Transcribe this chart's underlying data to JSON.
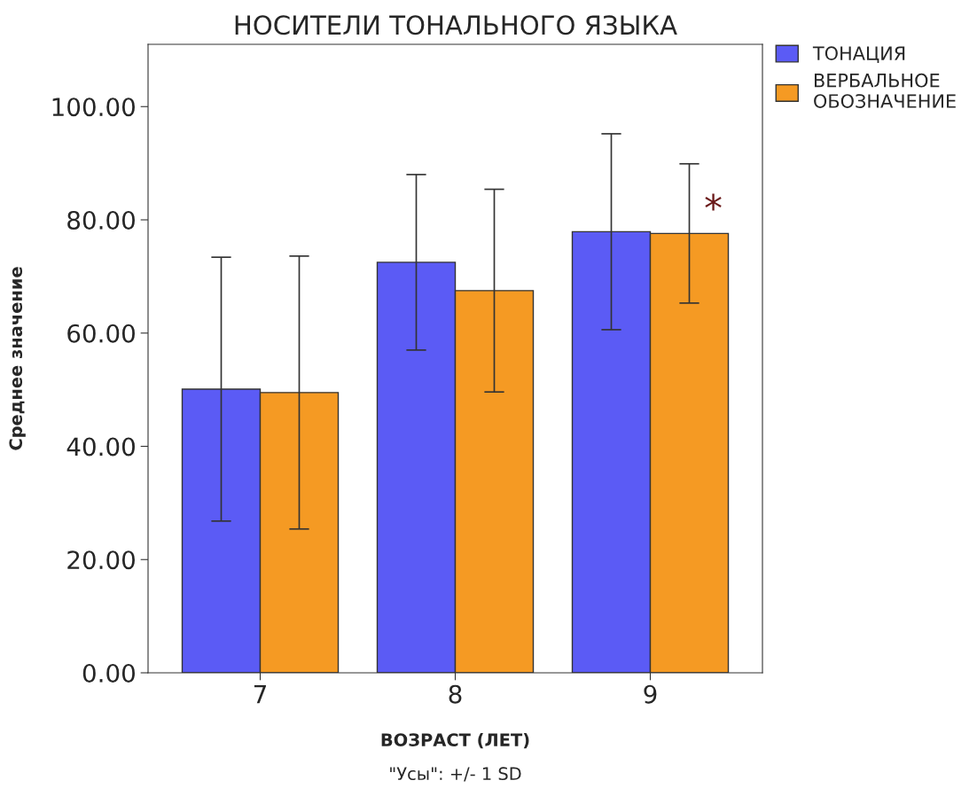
{
  "chart_data": {
    "type": "bar",
    "title": "НОСИТЕЛИ ТОНАЛЬНОГО ЯЗЫКА",
    "xlabel": "ВОЗРАСТ (ЛЕТ)",
    "ylabel": "Среднее значение",
    "categories": [
      "7",
      "8",
      "9"
    ],
    "series": [
      {
        "name": "ТОНАЦИЯ",
        "color": "#5b5bf5",
        "values": [
          50.1,
          72.5,
          77.9
        ],
        "errors": [
          23.3,
          15.5,
          17.3
        ]
      },
      {
        "name": "ВЕРБАЛЬНОЕ\nОБОЗНАЧЕНИЕ",
        "color": "#f59a23",
        "values": [
          49.5,
          67.5,
          77.6
        ],
        "errors": [
          24.1,
          17.9,
          12.3
        ]
      }
    ],
    "ylim": [
      0,
      111
    ],
    "yticks": [
      {
        "value": 0,
        "label": "0.00"
      },
      {
        "value": 20,
        "label": "20.00"
      },
      {
        "value": 40,
        "label": "40.00"
      },
      {
        "value": 60,
        "label": "60.00"
      },
      {
        "value": 80,
        "label": "80.00"
      },
      {
        "value": 100,
        "label": "100.00"
      }
    ],
    "grid": false,
    "legend": "top right",
    "annotations": [
      "*",
      "\"Усы\": +/- 1 SD"
    ]
  }
}
